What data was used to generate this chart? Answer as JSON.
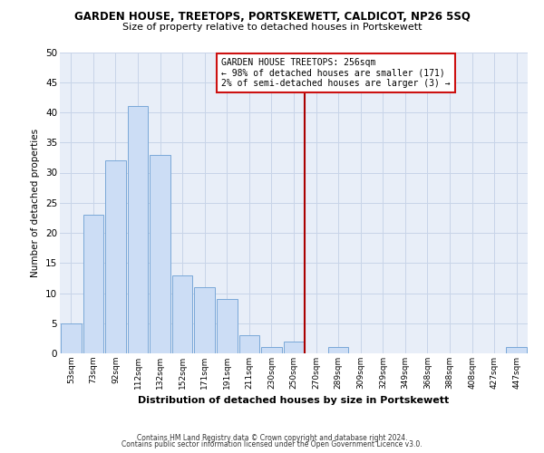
{
  "title": "GARDEN HOUSE, TREETOPS, PORTSKEWETT, CALDICOT, NP26 5SQ",
  "subtitle": "Size of property relative to detached houses in Portskewett",
  "xlabel": "Distribution of detached houses by size in Portskewett",
  "ylabel": "Number of detached properties",
  "bar_labels": [
    "53sqm",
    "73sqm",
    "92sqm",
    "112sqm",
    "132sqm",
    "152sqm",
    "171sqm",
    "191sqm",
    "211sqm",
    "230sqm",
    "250sqm",
    "270sqm",
    "289sqm",
    "309sqm",
    "329sqm",
    "349sqm",
    "368sqm",
    "388sqm",
    "408sqm",
    "427sqm",
    "447sqm"
  ],
  "bar_values": [
    5,
    23,
    32,
    41,
    33,
    13,
    11,
    9,
    3,
    1,
    2,
    0,
    1,
    0,
    0,
    0,
    0,
    0,
    0,
    0,
    1
  ],
  "bar_color": "#ccddf5",
  "bar_edge_color": "#7aa8d8",
  "vline_x_index": 10.5,
  "vline_color": "#aa0000",
  "ylim": [
    0,
    50
  ],
  "yticks": [
    0,
    5,
    10,
    15,
    20,
    25,
    30,
    35,
    40,
    45,
    50
  ],
  "annotation_title": "GARDEN HOUSE TREETOPS: 256sqm",
  "annotation_line1": "← 98% of detached houses are smaller (171)",
  "annotation_line2": "2% of semi-detached houses are larger (3) →",
  "footer1": "Contains HM Land Registry data © Crown copyright and database right 2024.",
  "footer2": "Contains public sector information licensed under the Open Government Licence v3.0.",
  "bg_color": "#ffffff",
  "grid_color": "#c8d4e8",
  "plot_bg_color": "#e8eef8"
}
